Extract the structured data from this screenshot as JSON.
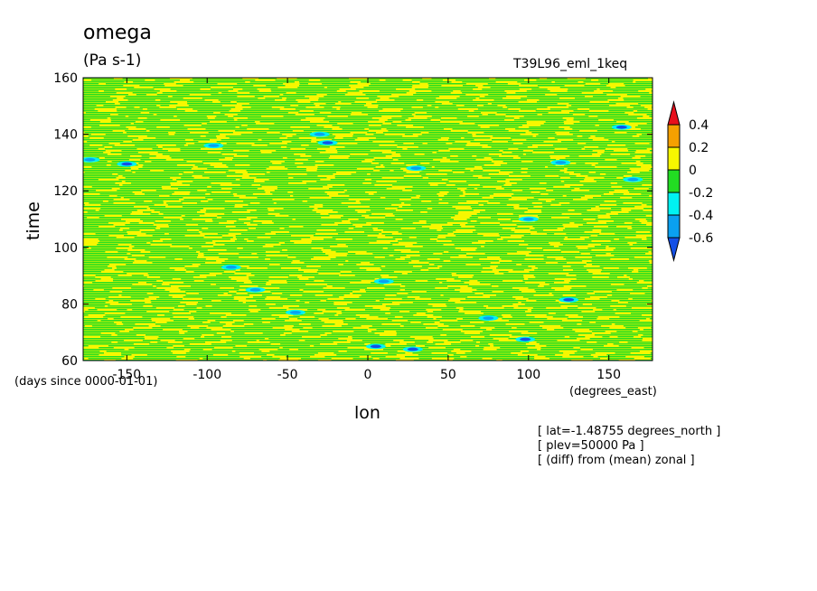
{
  "chart_data": {
    "type": "heatmap",
    "title": "omega",
    "units": "(Pa s-1)",
    "run_label": "T39L96_eml_1keq",
    "xlabel": "lon",
    "ylabel": "time",
    "x_units": "(degrees_east)",
    "y_units": "(days since 0000-01-01)",
    "xlim": [
      -177.1875,
      177.1875
    ],
    "ylim": [
      60,
      160
    ],
    "x_ticks": [
      "-150",
      "-100",
      "-50",
      "0",
      "50",
      "100",
      "150"
    ],
    "y_ticks": [
      "60",
      "80",
      "100",
      "120",
      "140",
      "160"
    ],
    "colorbar": {
      "levels": [
        "0.4",
        "0.2",
        "0",
        "-0.2",
        "-0.4",
        "-0.6"
      ],
      "bins": [
        {
          "range": "> 0.4",
          "color": "#e8101c"
        },
        {
          "range": "0.2 to 0.4",
          "color": "#f5a000"
        },
        {
          "range": "0 to 0.2",
          "color": "#f7f700"
        },
        {
          "range": "-0.2 to 0",
          "color": "#22dd22"
        },
        {
          "range": "-0.4 to -0.2",
          "color": "#00f2f2"
        },
        {
          "range": "-0.6 to -0.4",
          "color": "#0aa0f0"
        },
        {
          "range": "< -0.6",
          "color": "#1450e6"
        }
      ]
    },
    "notes": [
      "[ lat=-1.48755 degrees_north ]",
      "[ plev=50000 Pa ]",
      "[ (diff) from (mean) zonal ]"
    ],
    "field_pattern": "mostly values between -0.2 and 0.2 in thin zonal streaks, with scattered small patches below -0.2",
    "negative_patches": [
      {
        "lon": -150,
        "time": 129.5,
        "min": "-0.6"
      },
      {
        "lon": -173,
        "time": 131,
        "min": "-0.4"
      },
      {
        "lon": -96,
        "time": 136,
        "min": "-0.4"
      },
      {
        "lon": -30,
        "time": 140,
        "min": "-0.4"
      },
      {
        "lon": -25,
        "time": 137,
        "min": "-0.6"
      },
      {
        "lon": 30,
        "time": 128,
        "min": "-0.4"
      },
      {
        "lon": 158,
        "time": 142.5,
        "min": "-0.6"
      },
      {
        "lon": 120,
        "time": 130,
        "min": "-0.4"
      },
      {
        "lon": 100,
        "time": 110,
        "min": "-0.4"
      },
      {
        "lon": -85,
        "time": 93,
        "min": "-0.4"
      },
      {
        "lon": 10,
        "time": 88,
        "min": "-0.4"
      },
      {
        "lon": 125,
        "time": 81.5,
        "min": "-0.6"
      },
      {
        "lon": -45,
        "time": 77,
        "min": "-0.4"
      },
      {
        "lon": 98,
        "time": 67.5,
        "min": "-0.6"
      },
      {
        "lon": 5,
        "time": 65,
        "min": "-0.6"
      },
      {
        "lon": 28,
        "time": 64,
        "min": "-0.6"
      },
      {
        "lon": 75,
        "time": 75,
        "min": "-0.4"
      },
      {
        "lon": -70,
        "time": 85,
        "min": "-0.4"
      },
      {
        "lon": 165,
        "time": 124,
        "min": "-0.4"
      }
    ]
  }
}
